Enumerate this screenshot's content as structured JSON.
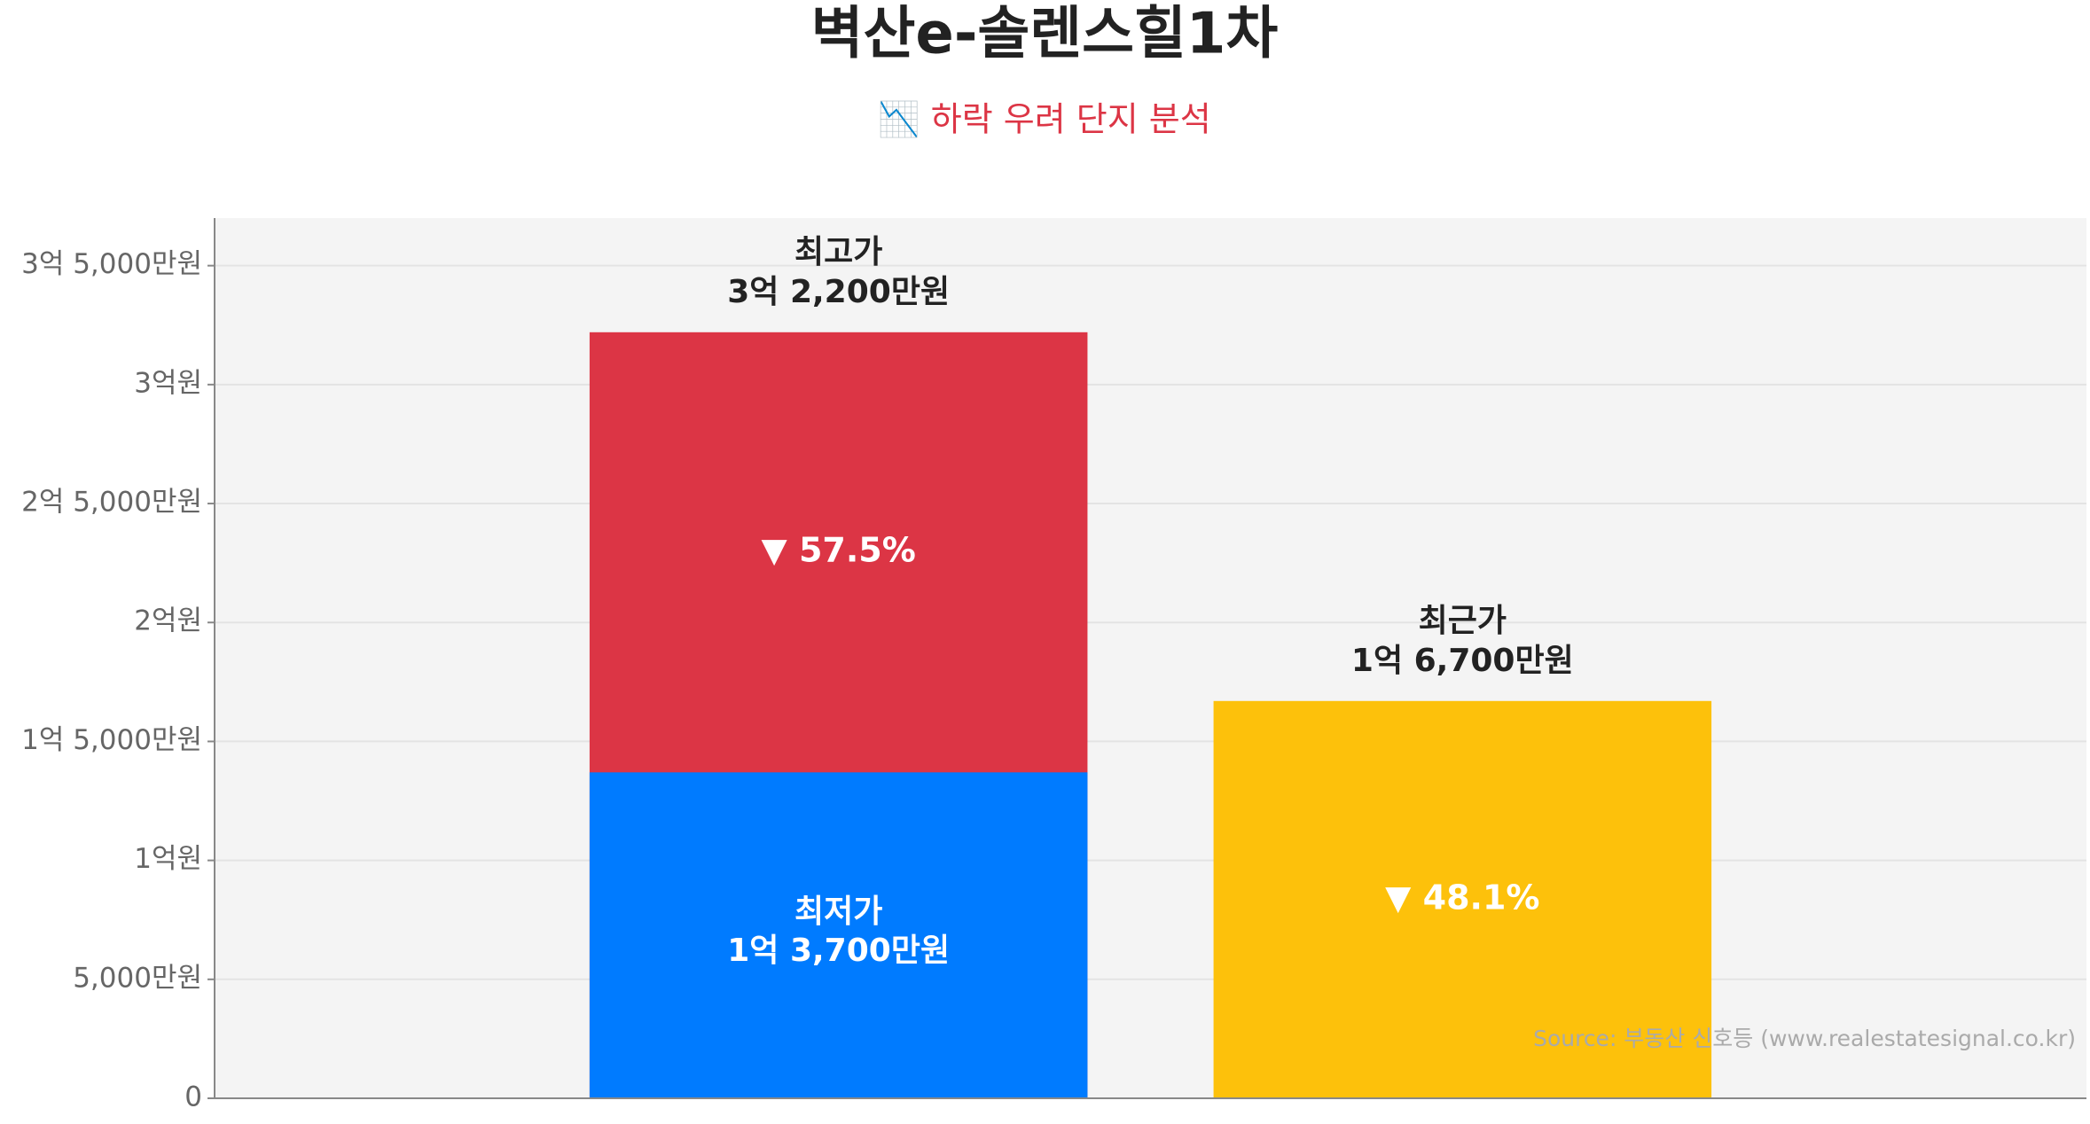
{
  "chart_data": {
    "type": "bar",
    "barmode": "overlay",
    "title": "벽산e-솔렌스힐1차",
    "subtitle": "📉 하락 우려 단지 분석",
    "source": "Source: 부동산 신호등 (www.realestatesignal.co.kr)",
    "categories": [
      null,
      null
    ],
    "series": [
      {
        "name": "최고가",
        "color": "#dc3545",
        "values": [
          32200,
          null
        ],
        "value_labels": [
          "3억 2,200만원",
          null
        ]
      },
      {
        "name": "최저가",
        "color": "#007bff",
        "values": [
          13700,
          null
        ],
        "value_labels": [
          "1억 3,700만원",
          null
        ]
      },
      {
        "name": "최근가",
        "color": "#fdc10b",
        "values": [
          null,
          16700
        ],
        "value_labels": [
          null,
          "1억 6,700만원"
        ]
      }
    ],
    "annotations": [
      "▼ 57.5%",
      "▼ 48.1%"
    ],
    "ylim": [
      0,
      37000
    ],
    "yticks": [
      0,
      {
        "value": 5000,
        "label": "5,000만원"
      },
      {
        "value": 10000,
        "label": "1억원"
      },
      {
        "value": 15000,
        "label": "1억 5,000만원"
      },
      {
        "value": 20000,
        "label": "2억원"
      },
      {
        "value": 25000,
        "label": "2억 5,000만원"
      },
      {
        "value": 30000,
        "label": "3억원"
      },
      {
        "value": 35000,
        "label": "3억 5,000만원"
      }
    ],
    "grid": true
  }
}
